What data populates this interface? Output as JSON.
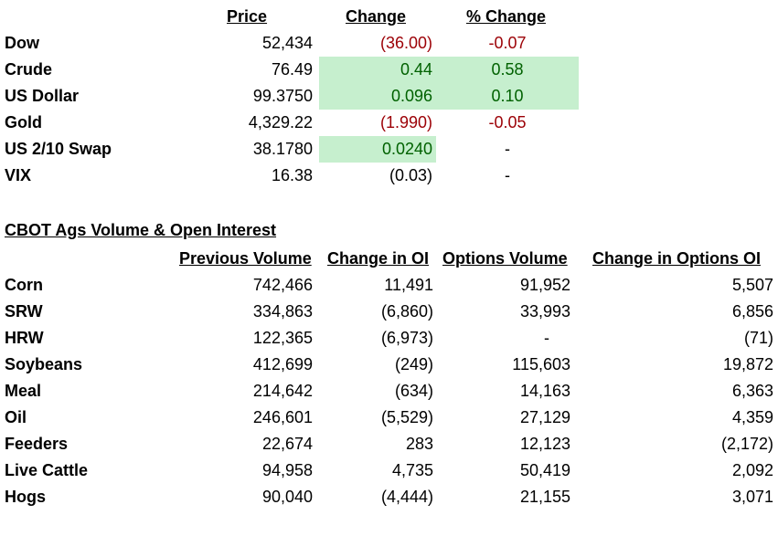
{
  "markets": {
    "headers": {
      "price": "Price",
      "change": "Change",
      "pct_change": "% Change"
    },
    "rows": [
      {
        "name": "Dow",
        "price": "52,434",
        "change": "(36.00)",
        "pct": "-0.07",
        "tone": "neg",
        "hl_change": false,
        "hl_pct": false
      },
      {
        "name": "Crude",
        "price": "76.49",
        "change": "0.44",
        "pct": "0.58",
        "tone": "pos",
        "hl_change": true,
        "hl_pct": true
      },
      {
        "name": "US Dollar",
        "price": "99.3750",
        "change": "0.096",
        "pct": "0.10",
        "tone": "pos",
        "hl_change": true,
        "hl_pct": true
      },
      {
        "name": "Gold",
        "price": "4,329.22",
        "change": "(1.990)",
        "pct": "-0.05",
        "tone": "neg",
        "hl_change": false,
        "hl_pct": false
      },
      {
        "name": "US 2/10 Swap",
        "price": "38.1780",
        "change": "0.0240",
        "pct": "-",
        "tone": "pos",
        "hl_change": true,
        "hl_pct": false
      },
      {
        "name": "VIX",
        "price": "16.38",
        "change": "(0.03)",
        "pct": "-",
        "tone": "none",
        "hl_change": false,
        "hl_pct": false
      }
    ]
  },
  "cbot": {
    "title": "CBOT Ags Volume & Open Interest",
    "headers": {
      "prev_volume": "Previous Volume",
      "change_oi": "Change in OI",
      "options_volume": "Options Volume",
      "change_options_oi": "Change in Options OI"
    },
    "rows": [
      {
        "name": "Corn",
        "prev_volume": "742,466",
        "change_oi": "11,491",
        "options_volume": "91,952",
        "change_options_oi": "5,507"
      },
      {
        "name": "SRW",
        "prev_volume": "334,863",
        "change_oi": "(6,860)",
        "options_volume": "33,993",
        "change_options_oi": "6,856"
      },
      {
        "name": "HRW",
        "prev_volume": "122,365",
        "change_oi": "(6,973)",
        "options_volume": "-",
        "change_options_oi": "(71)"
      },
      {
        "name": "Soybeans",
        "prev_volume": "412,699",
        "change_oi": "(249)",
        "options_volume": "115,603",
        "change_options_oi": "19,872"
      },
      {
        "name": "Meal",
        "prev_volume": "214,642",
        "change_oi": "(634)",
        "options_volume": "14,163",
        "change_options_oi": "6,363"
      },
      {
        "name": "Oil",
        "prev_volume": "246,601",
        "change_oi": "(5,529)",
        "options_volume": "27,129",
        "change_options_oi": "4,359"
      },
      {
        "name": "Feeders",
        "prev_volume": "22,674",
        "change_oi": "283",
        "options_volume": "12,123",
        "change_options_oi": "(2,172)"
      },
      {
        "name": "Live Cattle",
        "prev_volume": "94,958",
        "change_oi": "4,735",
        "options_volume": "50,419",
        "change_options_oi": "2,092"
      },
      {
        "name": "Hogs",
        "prev_volume": "90,040",
        "change_oi": "(4,444)",
        "options_volume": "21,155",
        "change_options_oi": "3,071"
      }
    ]
  }
}
